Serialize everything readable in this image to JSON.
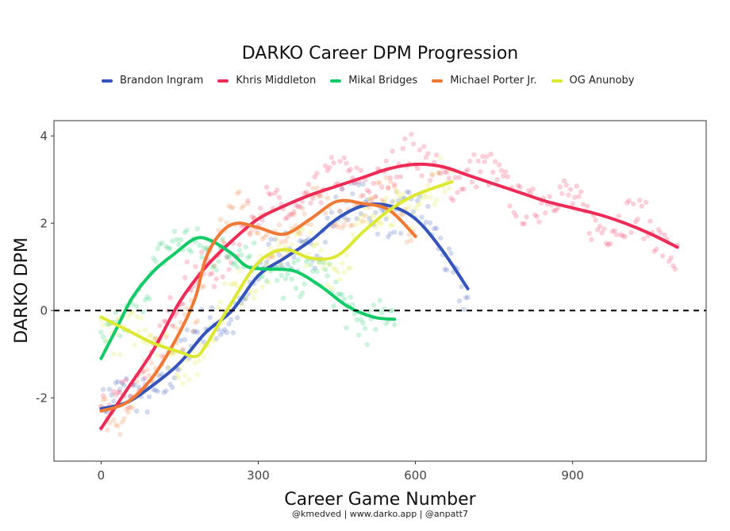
{
  "chart_data": {
    "type": "line",
    "title": "DARKO Career DPM Progression",
    "xlabel": "Career Game Number",
    "ylabel": "DARKO DPM",
    "caption": "@kmedved | www.darko.app | @anpatt7",
    "xlim": [
      -90,
      1155
    ],
    "ylim": [
      -3.45,
      4.35
    ],
    "xticks": [
      0,
      300,
      600,
      900
    ],
    "xtick_labels": [
      "0",
      "300",
      "600",
      "900"
    ],
    "yticks": [
      4,
      2,
      0,
      -2
    ],
    "ytick_labels": [
      "4",
      "2",
      "0",
      "-2"
    ],
    "reference_line": {
      "y": 0,
      "style": "dashed"
    },
    "legend_placement": "top",
    "series": [
      {
        "name": "Brandon Ingram",
        "color": "#3355bb",
        "x": [
          0,
          50,
          100,
          150,
          200,
          250,
          300,
          350,
          400,
          450,
          500,
          550,
          600,
          650,
          700
        ],
        "y": [
          -2.25,
          -2.1,
          -1.7,
          -1.2,
          -0.5,
          0,
          0.8,
          1.2,
          1.6,
          2.1,
          2.4,
          2.4,
          2.1,
          1.4,
          0.5
        ]
      },
      {
        "name": "Khris Middleton",
        "color": "#ee2b55",
        "x": [
          0,
          50,
          100,
          150,
          200,
          250,
          300,
          350,
          400,
          450,
          500,
          550,
          600,
          650,
          700,
          750,
          800,
          850,
          900,
          950,
          1000,
          1050,
          1100
        ],
        "y": [
          -2.7,
          -1.8,
          -0.9,
          0.2,
          1.0,
          1.6,
          2.1,
          2.4,
          2.65,
          2.85,
          3.05,
          3.25,
          3.35,
          3.3,
          3.1,
          2.9,
          2.7,
          2.5,
          2.35,
          2.2,
          2.0,
          1.75,
          1.45
        ]
      },
      {
        "name": "Mikal Bridges",
        "color": "#11cc66",
        "x": [
          0,
          30,
          60,
          100,
          140,
          180,
          210,
          250,
          280,
          320,
          370,
          420,
          470,
          520,
          560
        ],
        "y": [
          -1.1,
          -0.4,
          0.3,
          0.9,
          1.3,
          1.65,
          1.6,
          1.3,
          1.0,
          0.95,
          0.9,
          0.55,
          0.1,
          -0.15,
          -0.2
        ]
      },
      {
        "name": "Michael Porter Jr.",
        "color": "#f07a35",
        "x": [
          0,
          50,
          100,
          150,
          180,
          200,
          230,
          260,
          300,
          350,
          400,
          450,
          500,
          550,
          600
        ],
        "y": [
          -2.3,
          -2.1,
          -1.5,
          -0.5,
          0.3,
          1.2,
          1.8,
          2.0,
          1.9,
          1.75,
          2.1,
          2.5,
          2.45,
          2.3,
          1.7
        ]
      },
      {
        "name": "OG Anunoby",
        "color": "#dde833",
        "x": [
          0,
          50,
          100,
          150,
          180,
          200,
          250,
          300,
          350,
          400,
          450,
          500,
          550,
          600,
          670
        ],
        "y": [
          -0.15,
          -0.45,
          -0.75,
          -0.95,
          -1.05,
          -0.8,
          0.2,
          1.1,
          1.4,
          1.2,
          1.25,
          1.8,
          2.3,
          2.65,
          2.95
        ]
      }
    ]
  }
}
